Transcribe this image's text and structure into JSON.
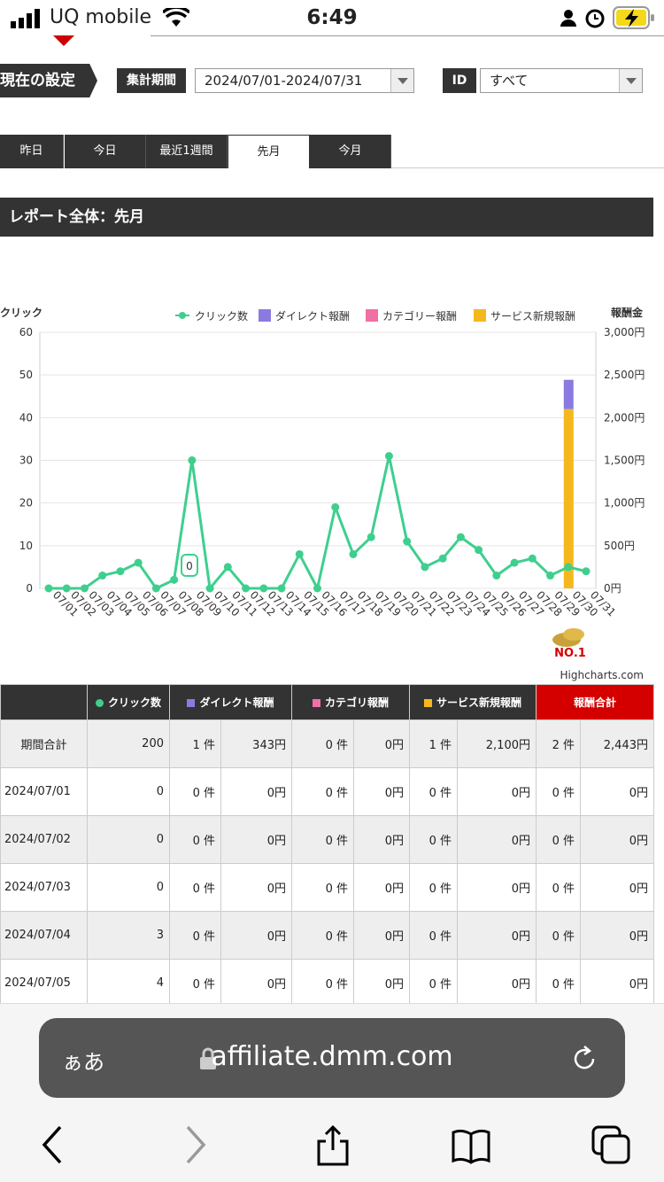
{
  "status_bar": {
    "carrier": "UQ mobile",
    "time": "6:49"
  },
  "settings": {
    "label": "現在の設定",
    "period_label": "集計期間",
    "period_value": "2024/07/01-2024/07/31",
    "id_label": "ID",
    "id_value": "すべて"
  },
  "tabs": [
    "昨日",
    "今日",
    "最近1週間",
    "先月",
    "今月"
  ],
  "active_tab": "先月",
  "report_title": "レポート全体：先月",
  "legend": [
    "クリック数",
    "ダイレクト報酬",
    "カテゴリー報酬",
    "サービス新規報酬"
  ],
  "colors": {
    "clicks": "#3ecf8e",
    "direct": "#8b7be0",
    "category": "#f06fa4",
    "service": "#f5b81c",
    "dark": "#333333",
    "red": "#d40000"
  },
  "chart_data": {
    "type": "line",
    "ylabel_left": "クリック",
    "ylabel_right": "報酬金",
    "y_left_ticks": [
      "0",
      "10",
      "20",
      "30",
      "40",
      "50",
      "60"
    ],
    "y_right_ticks": [
      "0円",
      "500円",
      "1,000円",
      "1,500円",
      "2,000円",
      "2,500円",
      "3,000円"
    ],
    "ylim_left": [
      0,
      60
    ],
    "ylim_right": [
      0,
      3000
    ],
    "categories": [
      "07/01",
      "07/02",
      "07/03",
      "07/04",
      "07/05",
      "07/06",
      "07/07",
      "07/08",
      "07/09",
      "07/10",
      "07/11",
      "07/12",
      "07/13",
      "07/14",
      "07/15",
      "07/16",
      "07/17",
      "07/18",
      "07/19",
      "07/20",
      "07/21",
      "07/22",
      "07/23",
      "07/24",
      "07/25",
      "07/26",
      "07/27",
      "07/28",
      "07/29",
      "07/30",
      "07/31"
    ],
    "series": [
      {
        "name": "クリック数",
        "values": [
          0,
          0,
          0,
          3,
          4,
          6,
          0,
          2,
          30,
          0,
          5,
          0,
          0,
          0,
          8,
          0,
          19,
          8,
          12,
          31,
          11,
          5,
          7,
          12,
          9,
          3,
          6,
          7,
          3,
          5,
          4
        ]
      },
      {
        "name": "サービス新規報酬",
        "values": [
          0,
          0,
          0,
          0,
          0,
          0,
          0,
          0,
          0,
          0,
          0,
          0,
          0,
          0,
          0,
          0,
          0,
          0,
          0,
          0,
          0,
          0,
          0,
          0,
          0,
          0,
          0,
          0,
          0,
          2100,
          0
        ]
      },
      {
        "name": "ダイレクト報酬",
        "values": [
          0,
          0,
          0,
          0,
          0,
          0,
          0,
          0,
          0,
          0,
          0,
          0,
          0,
          0,
          0,
          0,
          0,
          0,
          0,
          0,
          0,
          0,
          0,
          0,
          0,
          0,
          0,
          0,
          0,
          343,
          0
        ]
      }
    ],
    "tooltip_value": "0",
    "credit": "Highcharts.com"
  },
  "table": {
    "headers": [
      "クリック数",
      "ダイレクト報酬",
      "カテゴリ報酬",
      "サービス新規報酬",
      "報酬合計"
    ],
    "rows": [
      {
        "label": "期間合計",
        "cells": [
          "200",
          "1 件",
          "343円",
          "0 件",
          "0円",
          "1 件",
          "2,100円",
          "2 件",
          "2,443円"
        ]
      },
      {
        "label": "2024/07/01",
        "cells": [
          "0",
          "0 件",
          "0円",
          "0 件",
          "0円",
          "0 件",
          "0円",
          "0 件",
          "0円"
        ]
      },
      {
        "label": "2024/07/02",
        "cells": [
          "0",
          "0 件",
          "0円",
          "0 件",
          "0円",
          "0 件",
          "0円",
          "0 件",
          "0円"
        ]
      },
      {
        "label": "2024/07/03",
        "cells": [
          "0",
          "0 件",
          "0円",
          "0 件",
          "0円",
          "0 件",
          "0円",
          "0 件",
          "0円"
        ]
      },
      {
        "label": "2024/07/04",
        "cells": [
          "3",
          "0 件",
          "0円",
          "0 件",
          "0円",
          "0 件",
          "0円",
          "0 件",
          "0円"
        ]
      },
      {
        "label": "2024/07/05",
        "cells": [
          "4",
          "0 件",
          "0円",
          "0 件",
          "0円",
          "0 件",
          "0円",
          "0 件",
          "0円"
        ]
      }
    ]
  },
  "browser": {
    "aa_label": "ぁあ",
    "url": "affiliate.dmm.com"
  }
}
